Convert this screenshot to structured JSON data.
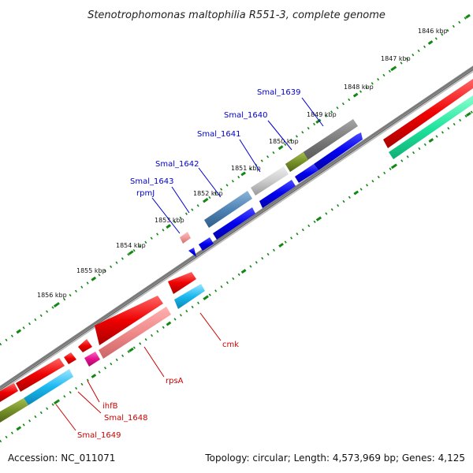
{
  "title": "Stenotrophomonas maltophilia R551-3, complete genome",
  "footer": {
    "accession": "Accession: NC_011071",
    "summary": "Topology: circular; Length: 4,573,969 bp; Genes: 4,125"
  },
  "ruler": {
    "unit": "kbp",
    "labels": [
      "1846 kbp",
      "1847 kbp",
      "1848 kbp",
      "1849 kbp",
      "1850 kbp",
      "1851 kbp",
      "1852 kbp",
      "1853 kbp",
      "1854 kbp",
      "1855 kbp",
      "1856 kbp"
    ]
  },
  "genes_upper": [
    "Smal_1639",
    "Smal_1640",
    "Smal_1641",
    "Smal_1642",
    "Smal_1643",
    "rpmJ"
  ],
  "genes_lower": [
    "cmk",
    "rpsA",
    "ihfB",
    "Smal_1648",
    "Smal_1649"
  ],
  "colors": {
    "upper_label": "#0000cc",
    "lower_label": "#cc0000",
    "ruler_dots": "#118811",
    "backbone": "#777777"
  }
}
